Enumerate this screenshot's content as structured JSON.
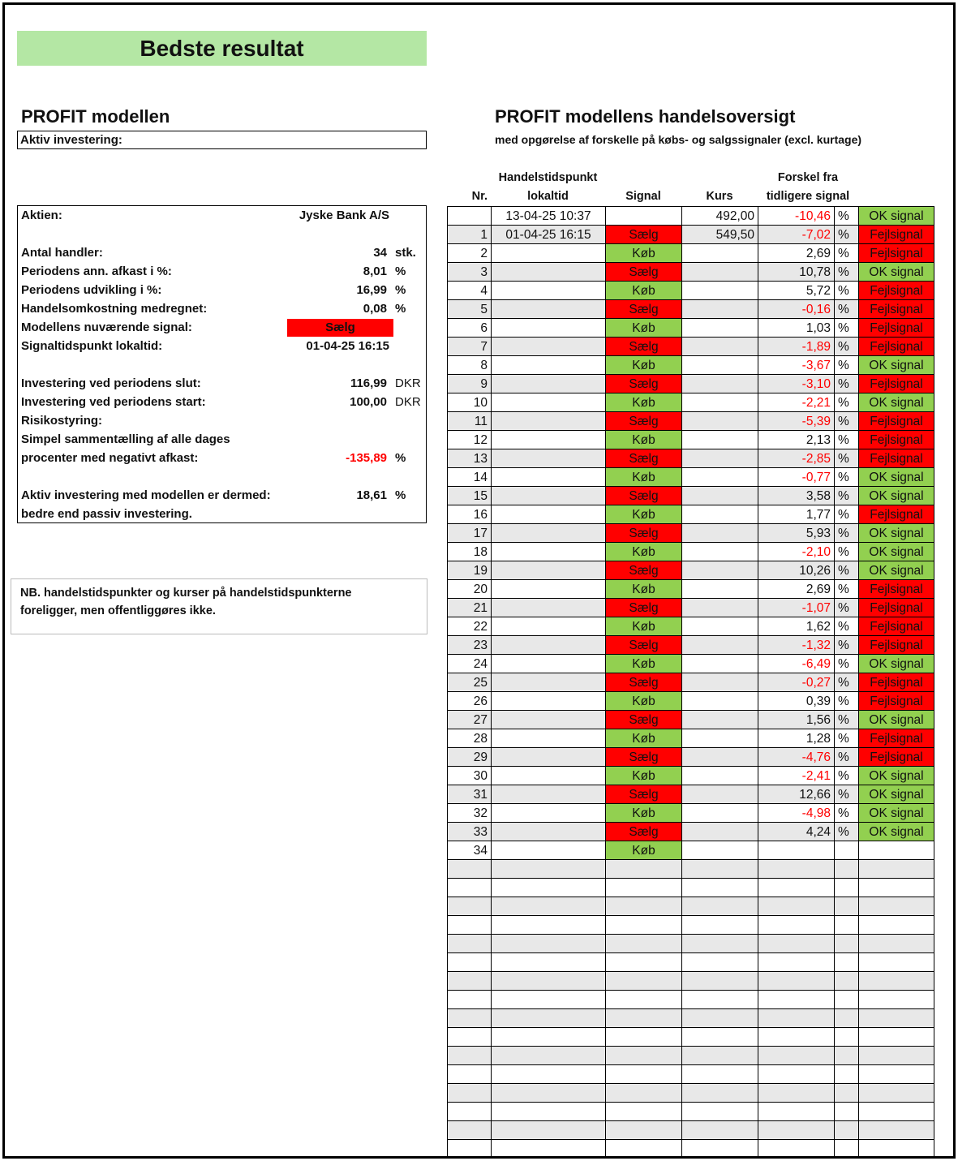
{
  "title": "Bedste resultat",
  "left": {
    "heading": "PROFIT modellen",
    "active_label": "Aktiv investering:",
    "stock_label": "Aktien:",
    "stock_value": "Jyske Bank A/S",
    "rows": [
      {
        "label": "Antal handler:",
        "value": "34",
        "unit": "stk."
      },
      {
        "label": "Periodens ann. afkast i %:",
        "value": "8,01",
        "unit": "%"
      },
      {
        "label": "Periodens udvikling i %:",
        "value": "16,99",
        "unit": "%"
      },
      {
        "label": "Handelsomkostning medregnet:",
        "value": "0,08",
        "unit": "%"
      }
    ],
    "signal_label": "Modellens nuværende signal:",
    "signal_value": "Sælg",
    "signal_time_label": "Signaltidspunkt lokaltid:",
    "signal_time_value": "01-04-25 16:15",
    "end_label": "Investering ved periodens slut:",
    "end_value": "116,99",
    "end_unit": "DKR",
    "start_label": "Investering ved periodens start:",
    "start_value": "100,00",
    "start_unit": "DKR",
    "risk_label": "Risikostyring:",
    "risk_line1": "Simpel sammentælling af alle dages",
    "risk_line2": "procenter med negativt afkast:",
    "risk_value": "-135,89",
    "risk_unit": "%",
    "active_result_label": "Aktiv investering med modellen er dermed:",
    "active_result_value": "18,61",
    "active_result_unit": "%",
    "active_result_line2": "bedre end passiv investering."
  },
  "note": {
    "line1": "NB. handelstidspunkter og kurser på handelstidspunkterne",
    "line2": "foreligger, men offentliggøres ikke."
  },
  "right": {
    "heading": "PROFIT modellens handelsoversigt",
    "subheading": "med opgørelse af forskelle på købs- og salgssignaler (excl. kurtage)",
    "headers": {
      "nr": "Nr.",
      "time1": "Handelstidspunkt",
      "time2": "lokaltid",
      "signal": "Signal",
      "kurs": "Kurs",
      "diff1": "Forskel fra",
      "diff2": "tidligere signal"
    },
    "rows": [
      {
        "nr": "",
        "time": "13-04-25 10:37",
        "signal": "",
        "kurs": "492,00",
        "diff": "-10,46",
        "pct": "%",
        "result": "OK signal"
      },
      {
        "nr": "1",
        "time": "01-04-25 16:15",
        "signal": "Sælg",
        "kurs": "549,50",
        "diff": "-7,02",
        "pct": "%",
        "result": "Fejlsignal"
      },
      {
        "nr": "2",
        "time": "",
        "signal": "Køb",
        "kurs": "",
        "diff": "2,69",
        "pct": "%",
        "result": "Fejlsignal"
      },
      {
        "nr": "3",
        "time": "",
        "signal": "Sælg",
        "kurs": "",
        "diff": "10,78",
        "pct": "%",
        "result": "OK signal"
      },
      {
        "nr": "4",
        "time": "",
        "signal": "Køb",
        "kurs": "",
        "diff": "5,72",
        "pct": "%",
        "result": "Fejlsignal"
      },
      {
        "nr": "5",
        "time": "",
        "signal": "Sælg",
        "kurs": "",
        "diff": "-0,16",
        "pct": "%",
        "result": "Fejlsignal"
      },
      {
        "nr": "6",
        "time": "",
        "signal": "Køb",
        "kurs": "",
        "diff": "1,03",
        "pct": "%",
        "result": "Fejlsignal"
      },
      {
        "nr": "7",
        "time": "",
        "signal": "Sælg",
        "kurs": "",
        "diff": "-1,89",
        "pct": "%",
        "result": "Fejlsignal"
      },
      {
        "nr": "8",
        "time": "",
        "signal": "Køb",
        "kurs": "",
        "diff": "-3,67",
        "pct": "%",
        "result": "OK signal"
      },
      {
        "nr": "9",
        "time": "",
        "signal": "Sælg",
        "kurs": "",
        "diff": "-3,10",
        "pct": "%",
        "result": "Fejlsignal"
      },
      {
        "nr": "10",
        "time": "",
        "signal": "Køb",
        "kurs": "",
        "diff": "-2,21",
        "pct": "%",
        "result": "OK signal"
      },
      {
        "nr": "11",
        "time": "",
        "signal": "Sælg",
        "kurs": "",
        "diff": "-5,39",
        "pct": "%",
        "result": "Fejlsignal"
      },
      {
        "nr": "12",
        "time": "",
        "signal": "Køb",
        "kurs": "",
        "diff": "2,13",
        "pct": "%",
        "result": "Fejlsignal"
      },
      {
        "nr": "13",
        "time": "",
        "signal": "Sælg",
        "kurs": "",
        "diff": "-2,85",
        "pct": "%",
        "result": "Fejlsignal"
      },
      {
        "nr": "14",
        "time": "",
        "signal": "Køb",
        "kurs": "",
        "diff": "-0,77",
        "pct": "%",
        "result": "OK signal"
      },
      {
        "nr": "15",
        "time": "",
        "signal": "Sælg",
        "kurs": "",
        "diff": "3,58",
        "pct": "%",
        "result": "OK signal"
      },
      {
        "nr": "16",
        "time": "",
        "signal": "Køb",
        "kurs": "",
        "diff": "1,77",
        "pct": "%",
        "result": "Fejlsignal"
      },
      {
        "nr": "17",
        "time": "",
        "signal": "Sælg",
        "kurs": "",
        "diff": "5,93",
        "pct": "%",
        "result": "OK signal"
      },
      {
        "nr": "18",
        "time": "",
        "signal": "Køb",
        "kurs": "",
        "diff": "-2,10",
        "pct": "%",
        "result": "OK signal"
      },
      {
        "nr": "19",
        "time": "",
        "signal": "Sælg",
        "kurs": "",
        "diff": "10,26",
        "pct": "%",
        "result": "OK signal"
      },
      {
        "nr": "20",
        "time": "",
        "signal": "Køb",
        "kurs": "",
        "diff": "2,69",
        "pct": "%",
        "result": "Fejlsignal"
      },
      {
        "nr": "21",
        "time": "",
        "signal": "Sælg",
        "kurs": "",
        "diff": "-1,07",
        "pct": "%",
        "result": "Fejlsignal"
      },
      {
        "nr": "22",
        "time": "",
        "signal": "Køb",
        "kurs": "",
        "diff": "1,62",
        "pct": "%",
        "result": "Fejlsignal"
      },
      {
        "nr": "23",
        "time": "",
        "signal": "Sælg",
        "kurs": "",
        "diff": "-1,32",
        "pct": "%",
        "result": "Fejlsignal"
      },
      {
        "nr": "24",
        "time": "",
        "signal": "Køb",
        "kurs": "",
        "diff": "-6,49",
        "pct": "%",
        "result": "OK signal"
      },
      {
        "nr": "25",
        "time": "",
        "signal": "Sælg",
        "kurs": "",
        "diff": "-0,27",
        "pct": "%",
        "result": "Fejlsignal"
      },
      {
        "nr": "26",
        "time": "",
        "signal": "Køb",
        "kurs": "",
        "diff": "0,39",
        "pct": "%",
        "result": "Fejlsignal"
      },
      {
        "nr": "27",
        "time": "",
        "signal": "Sælg",
        "kurs": "",
        "diff": "1,56",
        "pct": "%",
        "result": "OK signal"
      },
      {
        "nr": "28",
        "time": "",
        "signal": "Køb",
        "kurs": "",
        "diff": "1,28",
        "pct": "%",
        "result": "Fejlsignal"
      },
      {
        "nr": "29",
        "time": "",
        "signal": "Sælg",
        "kurs": "",
        "diff": "-4,76",
        "pct": "%",
        "result": "Fejlsignal"
      },
      {
        "nr": "30",
        "time": "",
        "signal": "Køb",
        "kurs": "",
        "diff": "-2,41",
        "pct": "%",
        "result": "OK signal"
      },
      {
        "nr": "31",
        "time": "",
        "signal": "Sælg",
        "kurs": "",
        "diff": "12,66",
        "pct": "%",
        "result": "OK signal"
      },
      {
        "nr": "32",
        "time": "",
        "signal": "Køb",
        "kurs": "",
        "diff": "-4,98",
        "pct": "%",
        "result": "OK signal"
      },
      {
        "nr": "33",
        "time": "",
        "signal": "Sælg",
        "kurs": "",
        "diff": "4,24",
        "pct": "%",
        "result": "OK signal"
      },
      {
        "nr": "34",
        "time": "",
        "signal": "Køb",
        "kurs": "",
        "diff": "",
        "pct": "",
        "result": ""
      }
    ]
  },
  "colors": {
    "buy": "#92d050",
    "sell": "#ff0000",
    "ok": "#92d050",
    "bad": "#ff0000",
    "negative": "#ff0000",
    "title_bg": "#b4e7a4"
  }
}
